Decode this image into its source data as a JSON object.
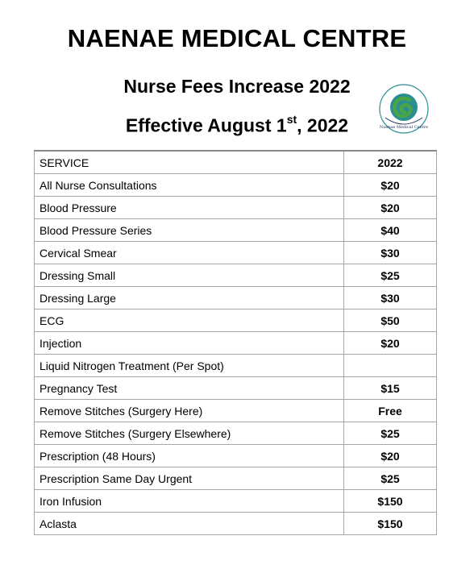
{
  "header": {
    "title": "NAENAE MEDICAL CENTRE",
    "subtitle": "Nurse Fees Increase 2022",
    "effective_prefix": "Effective August 1",
    "effective_sup": "st",
    "effective_suffix": ", 2022"
  },
  "logo": {
    "text": "Naenae Medical Centre",
    "colors": {
      "teal": "#2a8e92",
      "green": "#4aa547",
      "dark": "#1b2b5b"
    }
  },
  "table": {
    "col_service": "SERVICE",
    "col_year": "2022",
    "rows": [
      {
        "service": "All Nurse Consultations",
        "price": "$20"
      },
      {
        "service": "Blood Pressure",
        "price": "$20"
      },
      {
        "service": "Blood Pressure Series",
        "price": "$40"
      },
      {
        "service": "Cervical Smear",
        "price": "$30"
      },
      {
        "service": "Dressing Small",
        "price": "$25"
      },
      {
        "service": "Dressing Large",
        "price": "$30"
      },
      {
        "service": "ECG",
        "price": "$50"
      },
      {
        "service": "Injection",
        "price": "$20"
      },
      {
        "service": "Liquid Nitrogen Treatment (Per Spot)",
        "price": ""
      },
      {
        "service": "Pregnancy Test",
        "price": "$15"
      },
      {
        "service": "Remove Stitches (Surgery Here)",
        "price": "Free"
      },
      {
        "service": "Remove Stitches (Surgery Elsewhere)",
        "price": "$25"
      },
      {
        "service": "Prescription (48 Hours)",
        "price": "$20"
      },
      {
        "service": "Prescription Same Day Urgent",
        "price": "$25"
      },
      {
        "service": "Iron Infusion",
        "price": "$150"
      },
      {
        "service": "Aclasta",
        "price": "$150"
      }
    ]
  }
}
